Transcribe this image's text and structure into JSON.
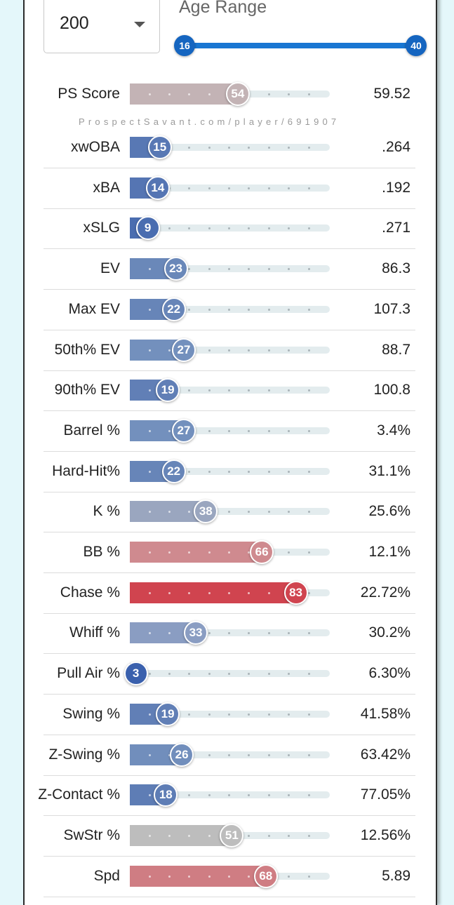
{
  "filters": {
    "min_pa_value": "200",
    "age_range_label": "Age Range",
    "age_min": "16",
    "age_max": "40"
  },
  "watermark": "ProspectSavant.com/player/691907",
  "metrics": [
    {
      "label": "PS Score",
      "percentile": 54,
      "percentile_label": "54",
      "value": "59.52",
      "color": "#c3b3b5"
    },
    {
      "label": "xwOBA",
      "percentile": 15,
      "percentile_label": "15",
      "value": ".264",
      "color": "#5878b4"
    },
    {
      "label": "xBA",
      "percentile": 14,
      "percentile_label": "14",
      "value": ".192",
      "color": "#5575b3"
    },
    {
      "label": "xSLG",
      "percentile": 9,
      "percentile_label": "9",
      "value": ".271",
      "color": "#4a6db0"
    },
    {
      "label": "EV",
      "percentile": 23,
      "percentile_label": "23",
      "value": "86.3",
      "color": "#6a88b9"
    },
    {
      "label": "Max EV",
      "percentile": 22,
      "percentile_label": "22",
      "value": "107.3",
      "color": "#6785b8"
    },
    {
      "label": "50th% EV",
      "percentile": 27,
      "percentile_label": "27",
      "value": "88.7",
      "color": "#7390bd"
    },
    {
      "label": "90th% EV",
      "percentile": 19,
      "percentile_label": "19",
      "value": "100.8",
      "color": "#617fb6"
    },
    {
      "label": "Barrel %",
      "percentile": 27,
      "percentile_label": "27",
      "value": "3.4%",
      "color": "#7390bd"
    },
    {
      "label": "Hard-Hit%",
      "percentile": 22,
      "percentile_label": "22",
      "value": "31.1%",
      "color": "#6785b8"
    },
    {
      "label": "K %",
      "percentile": 38,
      "percentile_label": "38",
      "value": "25.6%",
      "color": "#9aa6bf"
    },
    {
      "label": "BB %",
      "percentile": 66,
      "percentile_label": "66",
      "value": "12.1%",
      "color": "#cf8a8f"
    },
    {
      "label": "Chase %",
      "percentile": 83,
      "percentile_label": "83",
      "value": "22.72%",
      "color": "#d0444f"
    },
    {
      "label": "Whiff %",
      "percentile": 33,
      "percentile_label": "33",
      "value": "30.2%",
      "color": "#8a9dc2"
    },
    {
      "label": "Pull Air %",
      "percentile": 3,
      "percentile_label": "3",
      "value": "6.30%",
      "color": "#3a60ad"
    },
    {
      "label": "Swing %",
      "percentile": 19,
      "percentile_label": "19",
      "value": "41.58%",
      "color": "#617fb6"
    },
    {
      "label": "Z-Swing %",
      "percentile": 26,
      "percentile_label": "26",
      "value": "63.42%",
      "color": "#718ebc"
    },
    {
      "label": "Z-Contact %",
      "percentile": 18,
      "percentile_label": "18",
      "value": "77.05%",
      "color": "#5e7db5"
    },
    {
      "label": "SwStr %",
      "percentile": 51,
      "percentile_label": "51",
      "value": "12.56%",
      "color": "#bdbdbd"
    },
    {
      "label": "Spd",
      "percentile": 68,
      "percentile_label": "68",
      "value": "5.89",
      "color": "#cf7d83"
    }
  ]
}
